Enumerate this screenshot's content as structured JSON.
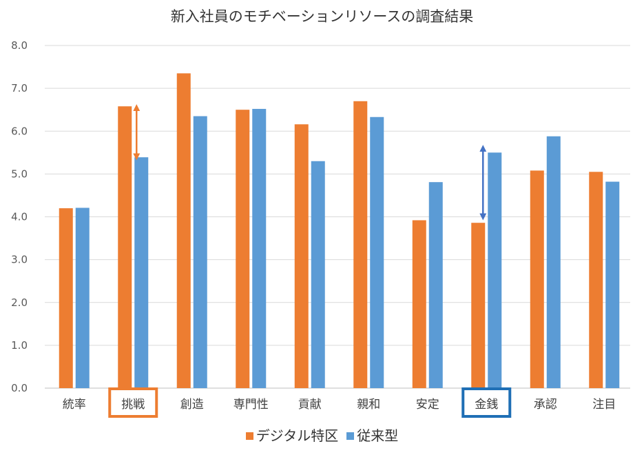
{
  "chart_data": {
    "type": "bar",
    "title": "新入社員のモチベーションリソースの調査結果",
    "categories": [
      "統率",
      "挑戦",
      "創造",
      "専門性",
      "貢献",
      "親和",
      "安定",
      "金銭",
      "承認",
      "注目"
    ],
    "series": [
      {
        "name": "デジタル特区",
        "color": "#ED7D31",
        "values": [
          4.2,
          6.58,
          7.35,
          6.5,
          6.16,
          6.7,
          3.92,
          3.86,
          5.08,
          5.05
        ]
      },
      {
        "name": "従来型",
        "color": "#5B9BD5",
        "values": [
          4.21,
          5.39,
          6.35,
          6.52,
          5.3,
          6.33,
          4.81,
          5.5,
          5.88,
          4.82
        ]
      }
    ],
    "ylim": [
      0,
      8
    ],
    "yticks": [
      "0.0",
      "1.0",
      "2.0",
      "3.0",
      "4.0",
      "5.0",
      "6.0",
      "7.0",
      "8.0"
    ],
    "grid": true,
    "legend_position": "bottom",
    "highlighted_categories": [
      {
        "category": "挑戦",
        "color": "#ED7D31"
      },
      {
        "category": "金銭",
        "color": "#1F6FB5"
      }
    ],
    "annotations": [
      {
        "type": "double-arrow",
        "category": "挑戦",
        "from": 6.55,
        "to": 5.4,
        "color": "#ED7D31"
      },
      {
        "type": "double-arrow",
        "category": "金銭",
        "from": 5.6,
        "to": 4.0,
        "color": "#4472C4"
      }
    ]
  }
}
